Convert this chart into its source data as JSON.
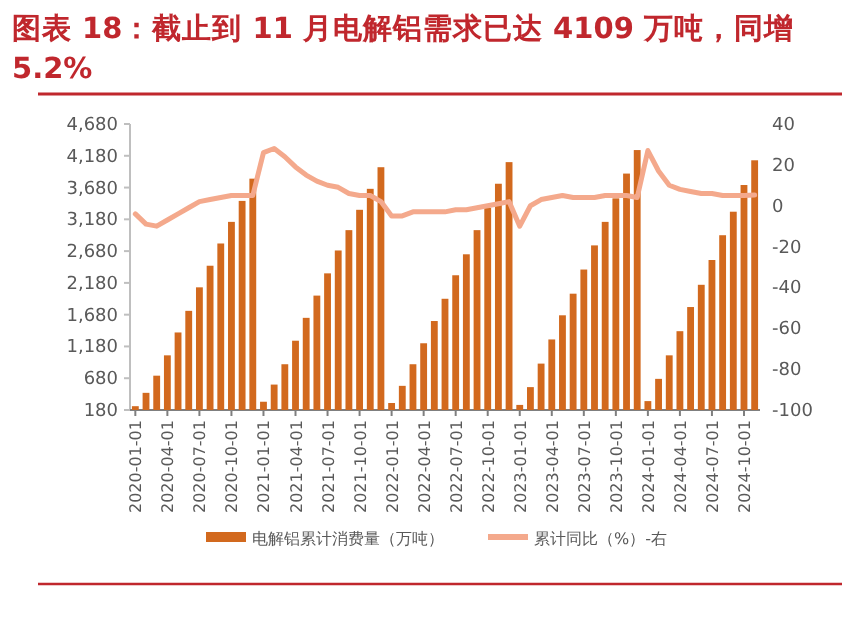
{
  "chart_data": {
    "type": "bar",
    "title": "图表 18：截止到 11 月电解铝需求已达 4109 万吨，同增 5.2%",
    "categories": [
      "2020-01-01",
      null,
      null,
      "2020-04-01",
      null,
      null,
      "2020-07-01",
      null,
      null,
      "2020-10-01",
      null,
      null,
      "2021-01-01",
      null,
      null,
      "2021-04-01",
      null,
      null,
      "2021-07-01",
      null,
      null,
      "2021-10-01",
      null,
      null,
      "2022-01-01",
      null,
      null,
      "2022-04-01",
      null,
      null,
      "2022-07-01",
      null,
      null,
      "2022-10-01",
      null,
      null,
      "2023-01-01",
      null,
      null,
      "2023-04-01",
      null,
      null,
      "2023-07-01",
      null,
      null,
      "2023-10-01",
      null,
      null,
      "2024-01-01",
      null,
      null,
      "2024-04-01",
      null,
      null,
      "2024-07-01",
      null,
      null,
      "2024-10-01",
      null
    ],
    "series": [
      {
        "name": "电解铝累计消费量（万吨）",
        "color": "#d2691e",
        "values": [
          240,
          450,
          720,
          1040,
          1400,
          1740,
          2110,
          2450,
          2800,
          3140,
          3470,
          3820,
          310,
          580,
          900,
          1270,
          1630,
          1980,
          2330,
          2690,
          3010,
          3330,
          3660,
          4000,
          290,
          560,
          900,
          1230,
          1580,
          1930,
          2300,
          2630,
          3010,
          3360,
          3740,
          4080,
          260,
          540,
          910,
          1290,
          1670,
          2010,
          2390,
          2770,
          3140,
          3510,
          3900,
          4270,
          320,
          670,
          1040,
          1420,
          1800,
          2150,
          2540,
          2930,
          3300,
          3720,
          4109
        ]
      },
      {
        "name": "累计同比（%）-右",
        "type": "line",
        "axis": "y2",
        "color": "#f4a98c",
        "values": [
          -4,
          -9,
          -10,
          -7,
          -4,
          -1,
          2,
          3,
          4,
          5,
          5,
          5,
          26,
          28,
          24,
          19,
          15,
          12,
          10,
          9,
          6,
          5,
          5,
          2,
          -5,
          -5,
          -3,
          -3,
          -3,
          -3,
          -2,
          -2,
          -1,
          0,
          1,
          2,
          -10,
          0,
          3,
          4,
          5,
          4,
          4,
          4,
          5,
          5,
          5,
          4,
          27,
          17,
          10,
          8,
          7,
          6,
          6,
          5,
          5,
          5,
          5.2
        ]
      }
    ],
    "ylim": [
      180,
      4680
    ],
    "yticks": [
      180,
      680,
      {
        "value": 1180,
        "label": "1,180"
      },
      {
        "value": 1680,
        "label": "1,680"
      },
      {
        "value": 2180,
        "label": "2,180"
      },
      {
        "value": 2680,
        "label": "2,680"
      },
      {
        "value": 3180,
        "label": "3,180"
      },
      {
        "value": 3680,
        "label": "3,680"
      },
      {
        "value": 4180,
        "label": "4,180"
      },
      {
        "value": 4680,
        "label": "4,680"
      }
    ],
    "y2lim": [
      -100,
      40
    ],
    "y2ticks": [
      -100,
      -80,
      -60,
      -40,
      -20,
      0,
      20,
      40
    ],
    "legend": "bottom"
  }
}
